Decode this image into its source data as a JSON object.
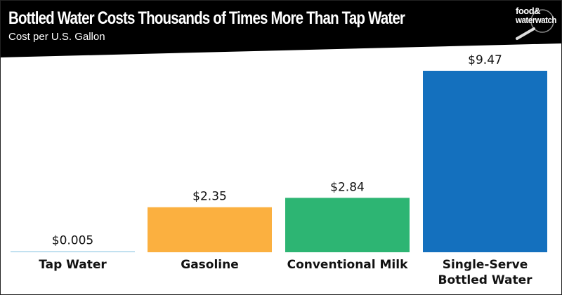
{
  "header": {
    "title": "Bottled Water Costs Thousands of Times More Than Tap Water",
    "subtitle": "Cost per U.S. Gallon"
  },
  "logo": {
    "text": "food&water watch"
  },
  "chart_data": {
    "type": "bar",
    "title": "Bottled Water Costs Thousands of Times More Than Tap Water",
    "subtitle": "Cost per U.S. Gallon",
    "categories": [
      "Tap Water",
      "Gasoline",
      "Conventional Milk",
      "Single-Serve Bottled Water"
    ],
    "category_lines": [
      [
        "Tap Water"
      ],
      [
        "Gasoline"
      ],
      [
        "Conventional Milk"
      ],
      [
        "Single-Serve",
        "Bottled Water"
      ]
    ],
    "values": [
      0.005,
      2.35,
      2.84,
      9.47
    ],
    "value_labels": [
      "$0.005",
      "$2.35",
      "$2.84",
      "$9.47"
    ],
    "colors": [
      "#a8d4ea",
      "#fbb040",
      "#2db573",
      "#1470be"
    ],
    "ylim": [
      0,
      9.47
    ],
    "xlabel": "",
    "ylabel": "",
    "grid": false
  }
}
